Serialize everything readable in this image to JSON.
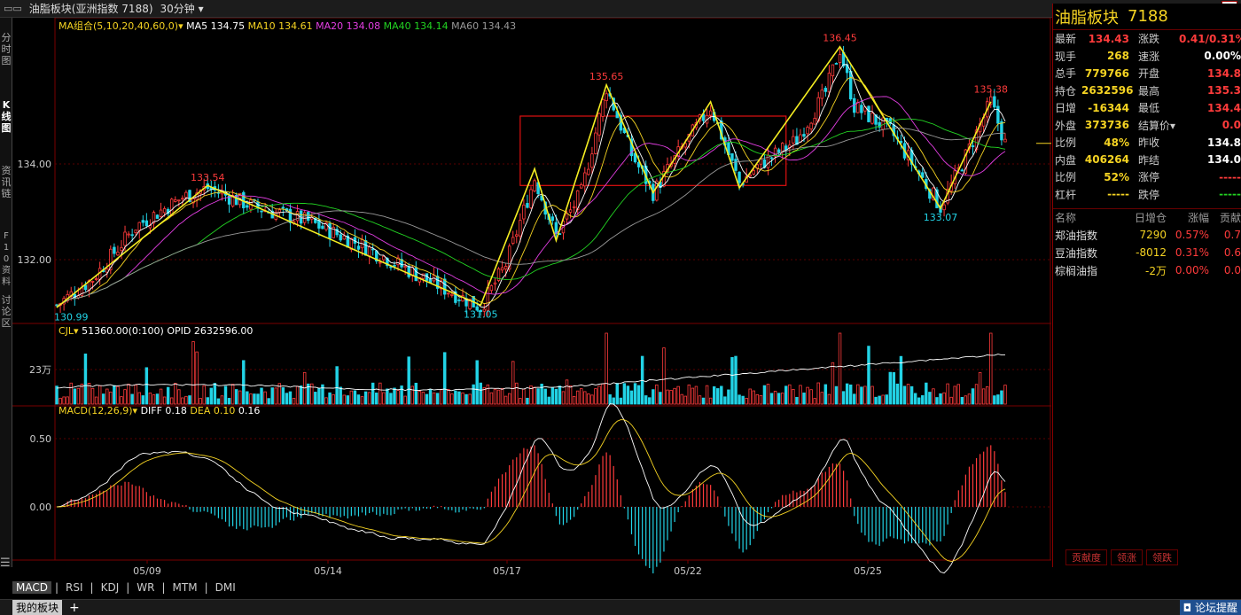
{
  "window": {
    "title": "油脂板块(亚洲指数 7188)",
    "period": "30分钟",
    "close_glyph": "×"
  },
  "left_tabs": [
    "分时图",
    "K线图",
    "资讯链",
    "F10资料",
    "讨论区"
  ],
  "ma": {
    "label": "MA组合(5,10,20,40,60,0)",
    "items": [
      {
        "name": "MA5",
        "value": "134.75",
        "color": "#ffffff"
      },
      {
        "name": "MA10",
        "value": "134.61",
        "color": "#f5d322"
      },
      {
        "name": "MA20",
        "value": "134.08",
        "color": "#e23ee2"
      },
      {
        "name": "MA40",
        "value": "134.14",
        "color": "#22d322"
      },
      {
        "name": "MA60",
        "value": "134.43",
        "color": "#999999"
      }
    ]
  },
  "vol": {
    "label": "CJL",
    "value": "51360.00(0:100)",
    "opid": "OPID 2632596.00",
    "axis": "23万"
  },
  "macd": {
    "label": "MACD(12,26,9)",
    "diff": "DIFF 0.18",
    "dea": "DEA 0.10",
    "macd": "0.16"
  },
  "chart_data": {
    "type": "candlestick",
    "price_axis": [
      "134.00",
      "132.00"
    ],
    "macd_axis": [
      "0.50",
      "0.00"
    ],
    "x_labels": [
      "05/09",
      "05/14",
      "05/17",
      "05/22",
      "05/25"
    ],
    "annotations": [
      "133.54",
      "135.65",
      "136.45",
      "135.38",
      "130.99",
      "131.05",
      "133.07"
    ],
    "highs": [
      {
        "label": "133.54",
        "value": 133.54
      },
      {
        "label": "135.65",
        "value": 135.65
      },
      {
        "label": "136.45",
        "value": 136.45
      },
      {
        "label": "135.38",
        "value": 135.38
      }
    ],
    "lows": [
      {
        "label": "130.99",
        "value": 130.99
      },
      {
        "label": "131.05",
        "value": 131.05
      },
      {
        "label": "133.07",
        "value": 133.07
      }
    ],
    "last_price": 134.43
  },
  "quote": {
    "name": "油脂板块",
    "code": "7188",
    "rows": [
      {
        "l1": "最新",
        "v1": "134.43",
        "c1": "#ff3b3b",
        "l2": "涨跌",
        "v2": "0.41/0.31%",
        "c2": "#ff3b3b"
      },
      {
        "l1": "现手",
        "v1": "268",
        "c1": "#f5d322",
        "l2": "速涨",
        "v2": "0.00%",
        "c2": "#ffffff"
      },
      {
        "l1": "总手",
        "v1": "779766",
        "c1": "#f5d322",
        "l2": "开盘",
        "v2": "134.8",
        "c2": "#ff3b3b"
      },
      {
        "l1": "持仓",
        "v1": "2632596",
        "c1": "#f5d322",
        "l2": "最高",
        "v2": "135.3",
        "c2": "#ff3b3b"
      },
      {
        "l1": "日增",
        "v1": "-16344",
        "c1": "#f5d322",
        "l2": "最低",
        "v2": "134.4",
        "c2": "#ff3b3b"
      },
      {
        "l1": "外盘",
        "v1": "373736",
        "c1": "#f5d322",
        "l2": "结算价",
        "v2": "0.0",
        "c2": "#ff3b3b"
      },
      {
        "l1": "比例",
        "v1": "48%",
        "c1": "#f5d322",
        "l2": "昨收",
        "v2": "134.8",
        "c2": "#ffffff"
      },
      {
        "l1": "内盘",
        "v1": "406264",
        "c1": "#f5d322",
        "l2": "昨结",
        "v2": "134.0",
        "c2": "#ffffff"
      },
      {
        "l1": "比例",
        "v1": "52%",
        "c1": "#f5d322",
        "l2": "涨停",
        "v2": "-----",
        "c2": "#ff3b3b"
      },
      {
        "l1": "杠杆",
        "v1": "-----",
        "c1": "#f5d322",
        "l2": "跌停",
        "v2": "-----",
        "c2": "#22d322"
      }
    ]
  },
  "index_table": {
    "headers": [
      "名称",
      "日增仓",
      "涨幅",
      "贡献"
    ],
    "rows": [
      {
        "name": "郑油指数",
        "inc": "7290",
        "chg": "0.57%",
        "contrib": "0.7"
      },
      {
        "name": "豆油指数",
        "inc": "-8012",
        "chg": "0.31%",
        "contrib": "0.6"
      },
      {
        "name": "棕榈油指",
        "inc": "-2万",
        "chg": "0.00%",
        "contrib": "0.0"
      }
    ]
  },
  "right_tabs": [
    "贡献度",
    "领涨",
    "领跌"
  ],
  "indicator_tabs": [
    "MACD",
    "RSI",
    "KDJ",
    "WR",
    "MTM",
    "DMI"
  ],
  "bottom": {
    "my_sector": "我的板块",
    "add": "+",
    "forum": "论坛提醒"
  }
}
